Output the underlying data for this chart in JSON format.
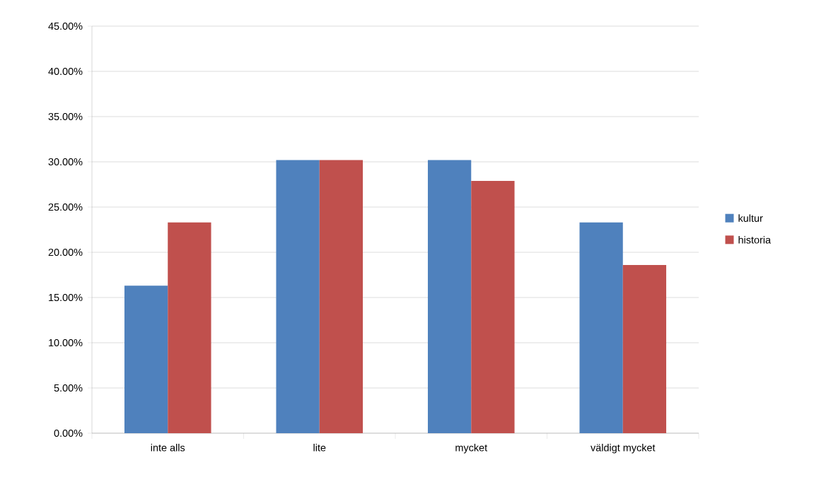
{
  "chart_data": {
    "type": "bar",
    "categories": [
      "inte alls",
      "lite",
      "mycket",
      "väldigt mycket"
    ],
    "series": [
      {
        "name": "kultur",
        "color": "#4f81bd",
        "values": [
          16.3,
          30.2,
          30.2,
          23.3
        ]
      },
      {
        "name": "historia",
        "color": "#c0504d",
        "values": [
          23.3,
          30.2,
          27.9,
          18.6
        ]
      }
    ],
    "ylim": [
      0,
      45
    ],
    "yticks": [
      {
        "value": 0,
        "label": "0.00%"
      },
      {
        "value": 5,
        "label": "5.00%"
      },
      {
        "value": 10,
        "label": "10.00%"
      },
      {
        "value": 15,
        "label": "15.00%"
      },
      {
        "value": 20,
        "label": "20.00%"
      },
      {
        "value": 25,
        "label": "25.00%"
      },
      {
        "value": 30,
        "label": "30.00%"
      },
      {
        "value": 35,
        "label": "35.00%"
      },
      {
        "value": 40,
        "label": "40.00%"
      },
      {
        "value": 45,
        "label": "45.00%"
      }
    ],
    "grid": "y",
    "legend": "right"
  }
}
